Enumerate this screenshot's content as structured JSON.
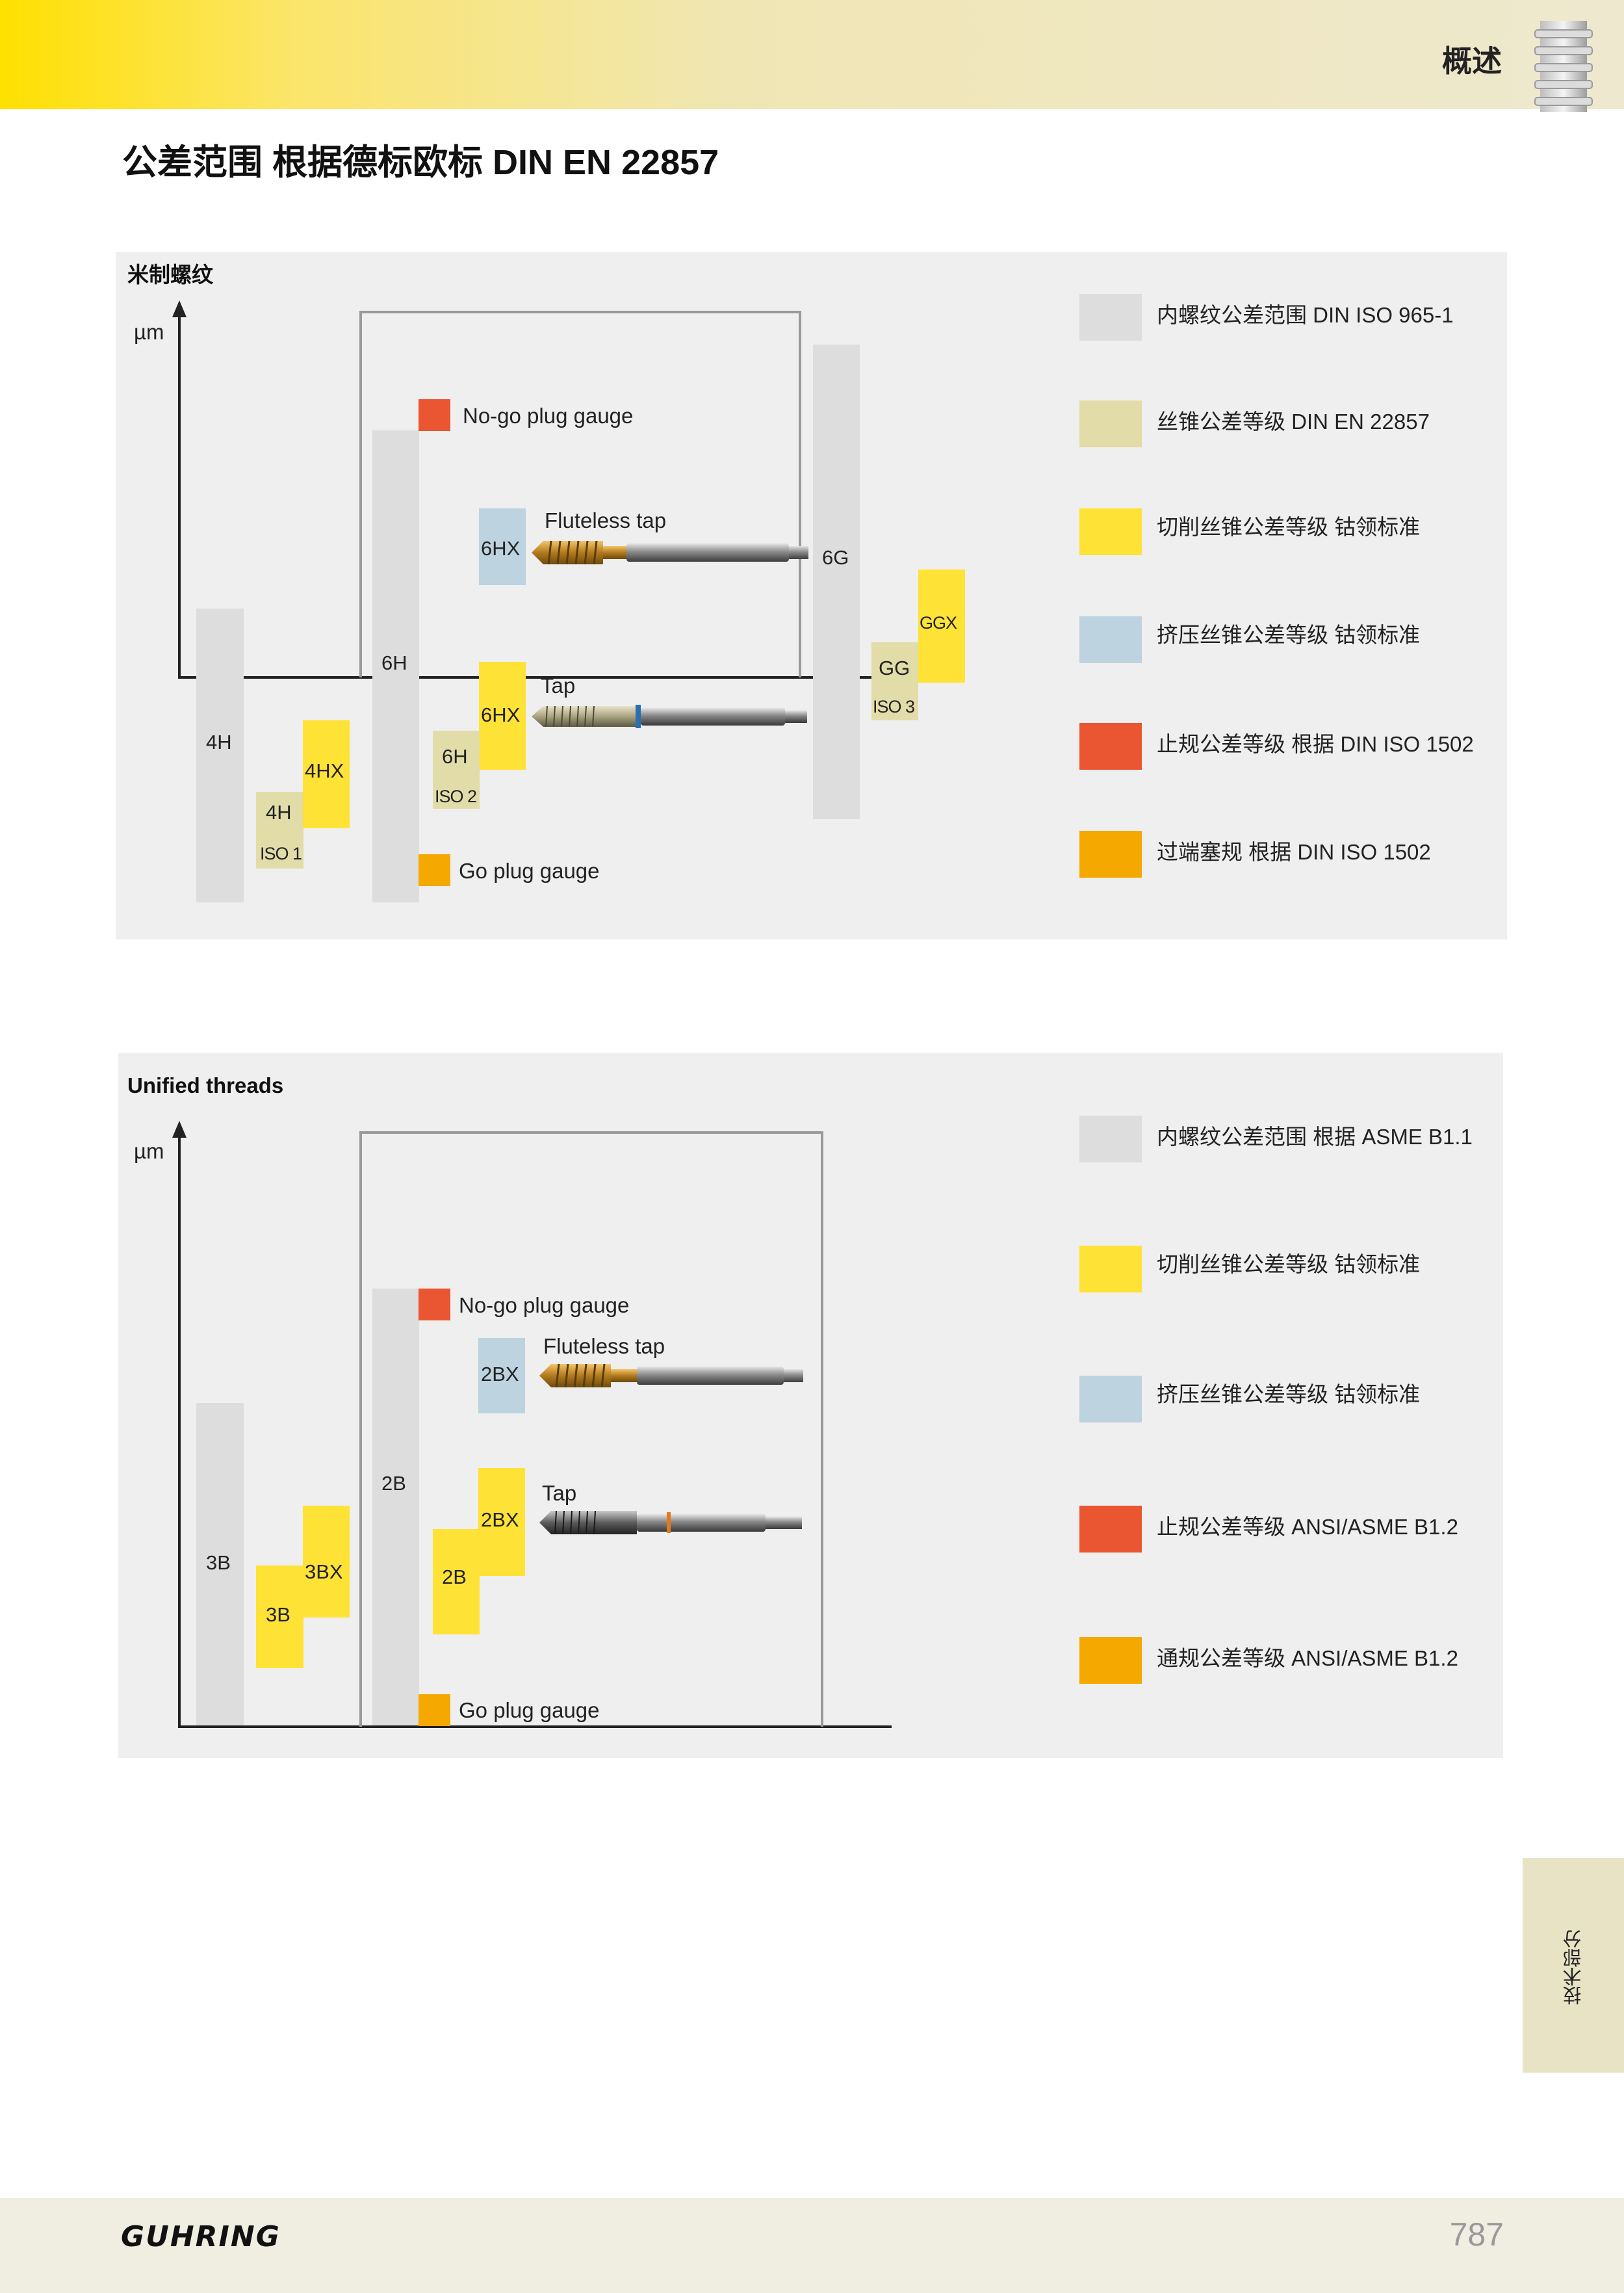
{
  "header": {
    "section_title": "概述",
    "section_icon": "thread-bolt-icon"
  },
  "page_title": "公差范围 根据德标欧标 DIN EN 22857",
  "metric": {
    "title": "米制螺纹",
    "unit": "µm",
    "blocks": {
      "b4H": "4H",
      "b4H_iso": "4H",
      "b4H_iso_num": "ISO 1",
      "b4HX": "4HX",
      "b6H": "6H",
      "b6H_iso": "6H",
      "b6H_iso_num": "ISO 2",
      "b6HX_flute": "6HX",
      "b6HX_tap": "6HX",
      "b6G": "6G",
      "bGG": "GG",
      "bGG_iso_num": "ISO 3",
      "bGGX": "GGX"
    },
    "captions": {
      "nogo": "No-go plug gauge",
      "fluteless": "Fluteless tap",
      "tap": "Tap",
      "go": "Go plug gauge"
    },
    "legend": [
      {
        "label": "内螺纹公差范围 DIN ISO 965-1",
        "color": "#dddddd"
      },
      {
        "label": "丝锥公差等级 DIN EN 22857",
        "color": "#e2dca9"
      },
      {
        "label": "切削丝锥公差等级 钴领标准",
        "color": "#ffe236"
      },
      {
        "label": "挤压丝锥公差等级 钴领标准",
        "color": "#bdd3df"
      },
      {
        "label": "止规公差等级 根据 DIN ISO 1502",
        "color": "#ea5532"
      },
      {
        "label": "过端塞规 根据 DIN ISO 1502",
        "color": "#f5a800"
      }
    ]
  },
  "unified": {
    "title": "Unified threads",
    "unit": "µm",
    "blocks": {
      "b3B": "3B",
      "b3B_y": "3B",
      "b3BX": "3BX",
      "b2B": "2B",
      "b2B_y": "2B",
      "b2BX_flute": "2BX",
      "b2BX_tap": "2BX"
    },
    "captions": {
      "nogo": "No-go plug gauge",
      "fluteless": "Fluteless tap",
      "tap": "Tap",
      "go": "Go plug gauge"
    },
    "legend": [
      {
        "label": "内螺纹公差范围 根据 ASME B1.1",
        "color": "#dddddd"
      },
      {
        "label": "切削丝锥公差等级 钴领标准",
        "color": "#ffe236"
      },
      {
        "label": "挤压丝锥公差等级 钴领标准",
        "color": "#bdd3df"
      },
      {
        "label": "止规公差等级 ANSI/ASME B1.2",
        "color": "#ea5532"
      },
      {
        "label": "通规公差等级 ANSI/ASME B1.2",
        "color": "#f5a800"
      }
    ]
  },
  "side_tab": "技术部分",
  "footer": {
    "logo": "GUHRING",
    "page_number": "787"
  }
}
